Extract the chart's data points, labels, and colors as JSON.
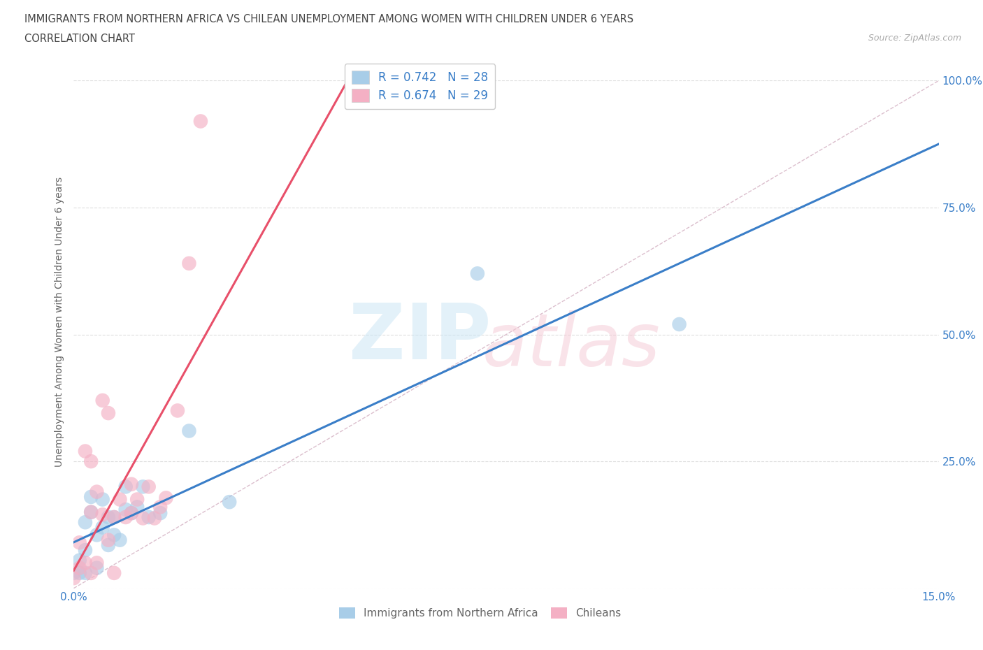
{
  "title_line1": "IMMIGRANTS FROM NORTHERN AFRICA VS CHILEAN UNEMPLOYMENT AMONG WOMEN WITH CHILDREN UNDER 6 YEARS",
  "title_line2": "CORRELATION CHART",
  "source": "Source: ZipAtlas.com",
  "ylabel": "Unemployment Among Women with Children Under 6 years",
  "xlim": [
    0.0,
    0.15
  ],
  "ylim": [
    0.0,
    1.05
  ],
  "blue_r": 0.742,
  "blue_n": 28,
  "pink_r": 0.674,
  "pink_n": 29,
  "blue_color": "#a8cde8",
  "pink_color": "#f4b0c4",
  "blue_line_color": "#3a7ec8",
  "pink_line_color": "#e8506a",
  "diagonal_color": "#e0c0cc",
  "legend_blue_label": "Immigrants from Northern Africa",
  "legend_pink_label": "Chileans",
  "blue_points_x": [
    0.0,
    0.001,
    0.001,
    0.002,
    0.002,
    0.002,
    0.003,
    0.003,
    0.004,
    0.004,
    0.005,
    0.005,
    0.006,
    0.006,
    0.007,
    0.007,
    0.008,
    0.009,
    0.009,
    0.01,
    0.011,
    0.012,
    0.013,
    0.015,
    0.02,
    0.027,
    0.07,
    0.105
  ],
  "blue_points_y": [
    0.03,
    0.03,
    0.055,
    0.03,
    0.075,
    0.13,
    0.15,
    0.18,
    0.04,
    0.105,
    0.12,
    0.175,
    0.085,
    0.14,
    0.105,
    0.14,
    0.095,
    0.155,
    0.2,
    0.148,
    0.16,
    0.2,
    0.14,
    0.148,
    0.31,
    0.17,
    0.62,
    0.52
  ],
  "pink_points_x": [
    0.0,
    0.001,
    0.001,
    0.002,
    0.002,
    0.003,
    0.003,
    0.004,
    0.004,
    0.005,
    0.005,
    0.006,
    0.006,
    0.007,
    0.007,
    0.008,
    0.009,
    0.01,
    0.01,
    0.011,
    0.012,
    0.013,
    0.014,
    0.015,
    0.016,
    0.018,
    0.02,
    0.022,
    0.003
  ],
  "pink_points_y": [
    0.02,
    0.04,
    0.09,
    0.05,
    0.27,
    0.15,
    0.25,
    0.19,
    0.05,
    0.145,
    0.37,
    0.095,
    0.345,
    0.03,
    0.14,
    0.175,
    0.14,
    0.205,
    0.148,
    0.175,
    0.138,
    0.2,
    0.138,
    0.16,
    0.178,
    0.35,
    0.64,
    0.92,
    0.03
  ]
}
